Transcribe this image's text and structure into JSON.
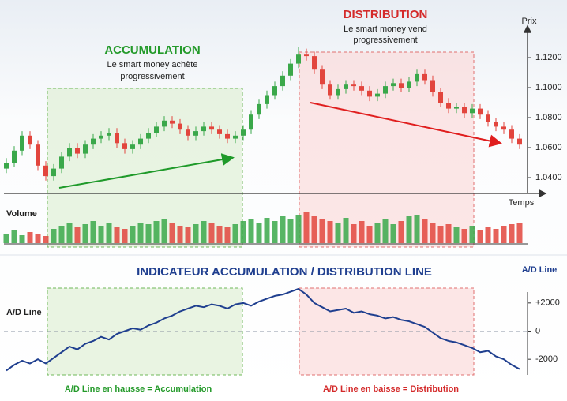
{
  "chart_data": [
    {
      "type": "candlestick",
      "y_label": "Prix",
      "x_label": "Temps",
      "ylim": [
        1.03,
        1.14
      ],
      "yticks": [
        {
          "value": 1.04,
          "label": "1.0400"
        },
        {
          "value": 1.06,
          "label": "1.0600"
        },
        {
          "value": 1.08,
          "label": "1.0800"
        },
        {
          "value": 1.1,
          "label": "1.1000"
        },
        {
          "value": 1.12,
          "label": "1.1200"
        }
      ],
      "up_color": "#3aa84a",
      "down_color": "#e2453d",
      "open": [
        1.046,
        1.05,
        1.058,
        1.068,
        1.062,
        1.048,
        1.041,
        1.046,
        1.054,
        1.06,
        1.056,
        1.062,
        1.066,
        1.068,
        1.07,
        1.063,
        1.059,
        1.062,
        1.066,
        1.07,
        1.074,
        1.078,
        1.076,
        1.072,
        1.068,
        1.071,
        1.074,
        1.072,
        1.069,
        1.066,
        1.068,
        1.072,
        1.082,
        1.089,
        1.095,
        1.101,
        1.108,
        1.116,
        1.122,
        1.121,
        1.112,
        1.102,
        1.095,
        1.099,
        1.102,
        1.101,
        1.098,
        1.094,
        1.096,
        1.101,
        1.103,
        1.1,
        1.104,
        1.109,
        1.105,
        1.097,
        1.09,
        1.086,
        1.087,
        1.083,
        1.086,
        1.082,
        1.077,
        1.074,
        1.072,
        1.066
      ],
      "high": [
        1.053,
        1.061,
        1.071,
        1.071,
        1.065,
        1.051,
        1.049,
        1.057,
        1.063,
        1.063,
        1.065,
        1.069,
        1.071,
        1.073,
        1.073,
        1.066,
        1.065,
        1.069,
        1.073,
        1.077,
        1.081,
        1.081,
        1.079,
        1.075,
        1.074,
        1.077,
        1.077,
        1.075,
        1.072,
        1.071,
        1.075,
        1.085,
        1.092,
        1.098,
        1.104,
        1.111,
        1.119,
        1.127,
        1.126,
        1.124,
        1.115,
        1.105,
        1.102,
        1.105,
        1.105,
        1.104,
        1.101,
        1.099,
        1.104,
        1.106,
        1.106,
        1.107,
        1.112,
        1.112,
        1.108,
        1.1,
        1.093,
        1.09,
        1.09,
        1.089,
        1.089,
        1.085,
        1.08,
        1.077,
        1.075,
        1.069
      ],
      "low": [
        1.043,
        1.047,
        1.055,
        1.059,
        1.045,
        1.038,
        1.038,
        1.043,
        1.051,
        1.053,
        1.053,
        1.059,
        1.063,
        1.065,
        1.06,
        1.056,
        1.056,
        1.059,
        1.063,
        1.067,
        1.071,
        1.073,
        1.069,
        1.065,
        1.065,
        1.068,
        1.069,
        1.066,
        1.063,
        1.063,
        1.065,
        1.069,
        1.079,
        1.086,
        1.092,
        1.098,
        1.105,
        1.113,
        1.118,
        1.109,
        1.099,
        1.092,
        1.092,
        1.096,
        1.098,
        1.095,
        1.091,
        1.091,
        1.093,
        1.098,
        1.097,
        1.097,
        1.101,
        1.102,
        1.094,
        1.087,
        1.083,
        1.083,
        1.08,
        1.08,
        1.079,
        1.074,
        1.071,
        1.069,
        1.063,
        1.059
      ],
      "close": [
        1.05,
        1.058,
        1.068,
        1.062,
        1.048,
        1.041,
        1.046,
        1.054,
        1.06,
        1.056,
        1.062,
        1.066,
        1.068,
        1.07,
        1.063,
        1.059,
        1.062,
        1.066,
        1.07,
        1.074,
        1.078,
        1.076,
        1.072,
        1.068,
        1.071,
        1.074,
        1.072,
        1.069,
        1.066,
        1.068,
        1.072,
        1.082,
        1.089,
        1.095,
        1.101,
        1.108,
        1.116,
        1.122,
        1.121,
        1.112,
        1.102,
        1.095,
        1.099,
        1.102,
        1.101,
        1.098,
        1.094,
        1.096,
        1.101,
        1.103,
        1.1,
        1.104,
        1.109,
        1.105,
        1.097,
        1.09,
        1.086,
        1.087,
        1.083,
        1.086,
        1.082,
        1.077,
        1.074,
        1.072,
        1.066,
        1.062
      ]
    },
    {
      "type": "bar",
      "y_label": "Volume",
      "values": [
        12,
        16,
        10,
        14,
        11,
        9,
        18,
        22,
        26,
        20,
        24,
        28,
        22,
        25,
        20,
        18,
        22,
        26,
        24,
        28,
        30,
        26,
        22,
        20,
        24,
        28,
        26,
        22,
        20,
        24,
        28,
        30,
        26,
        32,
        28,
        34,
        30,
        36,
        40,
        34,
        30,
        28,
        26,
        32,
        24,
        28,
        22,
        26,
        30,
        24,
        28,
        34,
        36,
        30,
        26,
        22,
        24,
        20,
        18,
        22,
        16,
        20,
        18,
        22,
        24,
        26
      ]
    },
    {
      "type": "line",
      "title": "INDICATEUR ACCUMULATION / DISTRIBUTION LINE",
      "label": "A/D Line",
      "y_label": "A/D Line",
      "color": "#1f3f8f",
      "ylim": [
        -3000,
        3000
      ],
      "yticks": [
        {
          "value": 2000,
          "label": "+2000"
        },
        0,
        -2000
      ],
      "values": [
        -2800,
        -2400,
        -2100,
        -2300,
        -2000,
        -2300,
        -1900,
        -1500,
        -1100,
        -1300,
        -900,
        -700,
        -400,
        -600,
        -200,
        0,
        200,
        100,
        400,
        600,
        900,
        1100,
        1400,
        1600,
        1800,
        1700,
        1900,
        1800,
        1600,
        1900,
        2000,
        1800,
        2100,
        2300,
        2500,
        2600,
        2800,
        3000,
        2600,
        2000,
        1700,
        1400,
        1500,
        1600,
        1300,
        1400,
        1200,
        1100,
        900,
        1000,
        800,
        700,
        500,
        300,
        -100,
        -500,
        -700,
        -800,
        -1000,
        -1200,
        -1500,
        -1400,
        -1800,
        -2000,
        -2400,
        -2700
      ]
    }
  ],
  "annotations": {
    "accumulation": {
      "title": "ACCUMULATION",
      "text": [
        "Le smart money achète",
        "progressivement"
      ],
      "caption": "A/D Line en hausse = Accumulation"
    },
    "distribution": {
      "title": "DISTRIBUTION",
      "text": [
        "Le smart money vend",
        "progressivement"
      ],
      "caption": "A/D Line en baisse = Distribution"
    }
  }
}
